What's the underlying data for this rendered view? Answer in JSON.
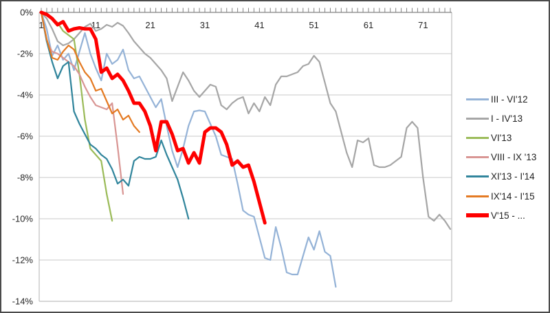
{
  "chart": {
    "background": "#ffffff",
    "outer_border_color": "#4a4a4a",
    "plot_border_color": "#bfbfbf",
    "gridline_color": "#c9c9c9",
    "axis_line_color": "#808080",
    "label_color": "#262626",
    "x_axis": {
      "tick_labels": [
        "1",
        "11",
        "21",
        "31",
        "41",
        "51",
        "61",
        "71"
      ],
      "tick_positions": [
        1,
        11,
        21,
        31,
        41,
        51,
        61,
        71
      ]
    },
    "y_axis": {
      "tick_labels": [
        "0%",
        "-2%",
        "-4%",
        "-6%",
        "-8%",
        "-10%",
        "-12%",
        "-14%"
      ],
      "tick_values": [
        0,
        -2,
        -4,
        -6,
        -8,
        -10,
        -12,
        -14
      ]
    }
  },
  "chart_data": {
    "type": "line",
    "title": "",
    "xlabel": "",
    "ylabel": "",
    "x_range": [
      1,
      76
    ],
    "ylim": [
      -14,
      0
    ],
    "y_unit": "percent",
    "grid": true,
    "legend_position": "right",
    "series": [
      {
        "name": "III - VI'12",
        "color": "#95B3D7",
        "line_width": 2.25,
        "x_start": 1,
        "values": [
          0,
          -0.8,
          -2.1,
          -1.6,
          -2.3,
          -2.0,
          -2.8,
          -1.9,
          -1.0,
          -2.0,
          -2.7,
          -3.3,
          -2.0,
          -2.5,
          -2.3,
          -1.8,
          -2.8,
          -3.2,
          -3.1,
          -3.6,
          -4.1,
          -4.6,
          -4.2,
          -5.5,
          -6.7,
          -7.5,
          -6.6,
          -5.5,
          -4.8,
          -4.75,
          -4.8,
          -5.4,
          -6.0,
          -6.9,
          -7.0,
          -7.1,
          -8.3,
          -9.6,
          -9.8,
          -9.9,
          -10.9,
          -11.9,
          -12.0,
          -10.4,
          -11.4,
          -12.6,
          -12.7,
          -12.7,
          -11.8,
          -10.9,
          -11.5,
          -10.6,
          -11.6,
          -11.8,
          -13.3
        ]
      },
      {
        "name": "I - IV'13",
        "color": "#A6A6A6",
        "line_width": 2.25,
        "x_start": 1,
        "values": [
          0,
          -0.3,
          -0.8,
          -1.4,
          -1.6,
          -1.5,
          -1.3,
          -1.0,
          -0.7,
          -0.55,
          -0.9,
          -0.8,
          -0.6,
          -0.7,
          -0.5,
          -0.65,
          -1.0,
          -1.4,
          -1.7,
          -2.0,
          -2.2,
          -2.5,
          -2.8,
          -3.2,
          -4.3,
          -3.6,
          -2.9,
          -3.3,
          -3.8,
          -4.1,
          -3.8,
          -3.5,
          -3.6,
          -4.5,
          -4.7,
          -4.4,
          -4.2,
          -4.1,
          -4.9,
          -4.4,
          -4.8,
          -4.1,
          -4.5,
          -3.5,
          -3.1,
          -3.1,
          -3.0,
          -2.9,
          -2.6,
          -2.5,
          -2.1,
          -2.4,
          -3.4,
          -4.4,
          -4.8,
          -5.8,
          -6.8,
          -7.5,
          -6.2,
          -6.3,
          -6.1,
          -7.4,
          -7.5,
          -7.5,
          -7.4,
          -7.2,
          -7.0,
          -5.6,
          -5.3,
          -5.6,
          -8.0,
          -9.9,
          -10.1,
          -9.8,
          -10.1,
          -10.5
        ]
      },
      {
        "name": "VI'13",
        "color": "#9BBB59",
        "line_width": 2.25,
        "x_start": 1,
        "values": [
          0,
          -0.15,
          -0.3,
          -0.5,
          -0.9,
          -1.1,
          -1.3,
          -3.0,
          -5.2,
          -6.6,
          -6.9,
          -7.2,
          -8.8,
          -10.1
        ]
      },
      {
        "name": "VIII - IX '13",
        "color": "#D99694",
        "line_width": 2.25,
        "x_start": 1,
        "values": [
          0,
          -1.4,
          -1.9,
          -2.0,
          -2.2,
          -2.4,
          -2.6,
          -3.0,
          -3.6,
          -4.1,
          -4.5,
          -4.6,
          -4.7,
          -4.4,
          -6.5,
          -8.8
        ]
      },
      {
        "name": "XI'13 - I'14",
        "color": "#31859C",
        "line_width": 2.25,
        "x_start": 1,
        "values": [
          0,
          -1.4,
          -2.4,
          -3.2,
          -2.6,
          -2.4,
          -4.8,
          -5.4,
          -5.9,
          -6.4,
          -6.6,
          -6.9,
          -7.1,
          -7.6,
          -8.3,
          -8.1,
          -8.4,
          -7.2,
          -7.0,
          -7.1,
          -7.1,
          -7.0,
          -6.2,
          -6.9,
          -7.5,
          -8.1,
          -9.0,
          -10.0
        ]
      },
      {
        "name": "IX'14 - I'15",
        "color": "#E47A23",
        "line_width": 2.25,
        "x_start": 1,
        "values": [
          0,
          -1.3,
          -2.2,
          -2.3,
          -1.9,
          -1.6,
          -1.8,
          -2.4,
          -2.9,
          -3.2,
          -3.8,
          -3.7,
          -4.3,
          -4.9,
          -4.7,
          -5.2,
          -5.0,
          -5.5,
          -5.8
        ]
      },
      {
        "name": "V'15 - ...",
        "color": "#FE0000",
        "line_width": 5,
        "x_start": 1,
        "values": [
          0,
          -0.1,
          -0.3,
          -0.6,
          -0.45,
          -0.9,
          -0.8,
          -0.75,
          -0.8,
          -0.8,
          -1.3,
          -2.9,
          -2.7,
          -3.2,
          -3.0,
          -3.3,
          -3.8,
          -4.4,
          -4.4,
          -4.8,
          -5.5,
          -6.7,
          -5.3,
          -5.3,
          -5.9,
          -6.7,
          -6.6,
          -7.3,
          -6.8,
          -7.3,
          -5.8,
          -5.6,
          -5.6,
          -5.8,
          -6.4,
          -7.4,
          -7.2,
          -7.5,
          -7.4,
          -8.2,
          -9.2,
          -10.2
        ]
      }
    ]
  }
}
